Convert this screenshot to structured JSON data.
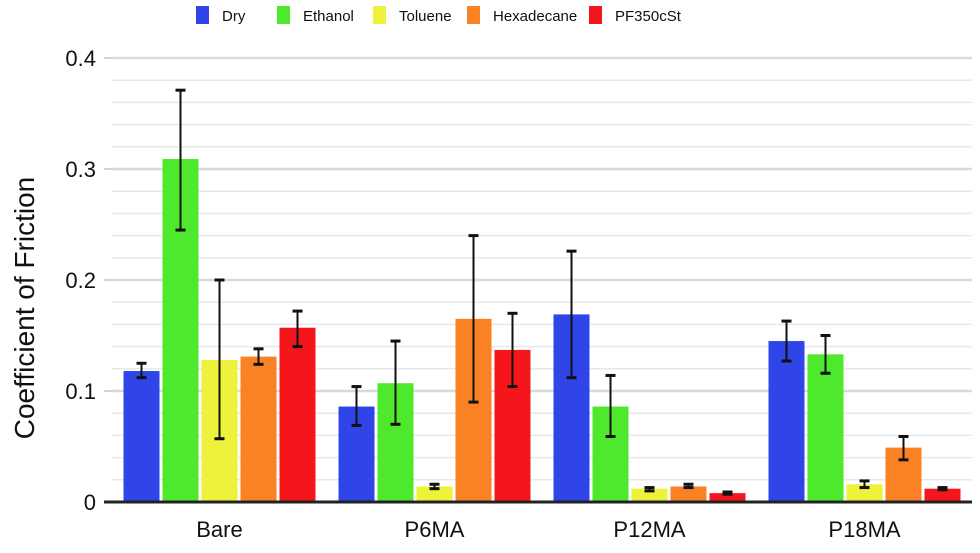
{
  "chart_data": {
    "type": "bar",
    "title": "",
    "xlabel": "",
    "ylabel": "Coefficient of Friction",
    "ylim": [
      0,
      0.4
    ],
    "yticks": [
      0,
      0.1,
      0.2,
      0.3,
      0.4
    ],
    "ytick_labels": [
      "0",
      "0.1",
      "0.2",
      "0.3",
      "0.4"
    ],
    "minor_grid_step": 0.02,
    "grid": true,
    "legend_position": "top-center",
    "categories": [
      "Bare",
      "P6MA",
      "P12MA",
      "P18MA"
    ],
    "series": [
      {
        "name": "Dry",
        "color": "#2f45e8",
        "values": [
          0.118,
          0.086,
          0.169,
          0.145
        ],
        "error_low": [
          0.112,
          0.069,
          0.112,
          0.127
        ],
        "error_high": [
          0.125,
          0.104,
          0.226,
          0.163
        ]
      },
      {
        "name": "Ethanol",
        "color": "#4ee82c",
        "values": [
          0.309,
          0.107,
          0.086,
          0.133
        ],
        "error_low": [
          0.245,
          0.07,
          0.059,
          0.116
        ],
        "error_high": [
          0.371,
          0.145,
          0.114,
          0.15
        ]
      },
      {
        "name": "Toluene",
        "color": "#eef23a",
        "values": [
          0.128,
          0.014,
          0.012,
          0.016
        ],
        "error_low": [
          0.057,
          0.012,
          0.01,
          0.013
        ],
        "error_high": [
          0.2,
          0.016,
          0.013,
          0.019
        ]
      },
      {
        "name": "Hexadecane",
        "color": "#fb8125",
        "values": [
          0.131,
          0.165,
          0.014,
          0.049
        ],
        "error_low": [
          0.124,
          0.09,
          0.013,
          0.038
        ],
        "error_high": [
          0.138,
          0.24,
          0.016,
          0.059
        ]
      },
      {
        "name": "PF350cSt",
        "color": "#f5161b",
        "values": [
          0.157,
          0.137,
          0.008,
          0.012
        ],
        "error_low": [
          0.14,
          0.104,
          0.007,
          0.011
        ],
        "error_high": [
          0.172,
          0.17,
          0.009,
          0.013
        ]
      }
    ]
  }
}
